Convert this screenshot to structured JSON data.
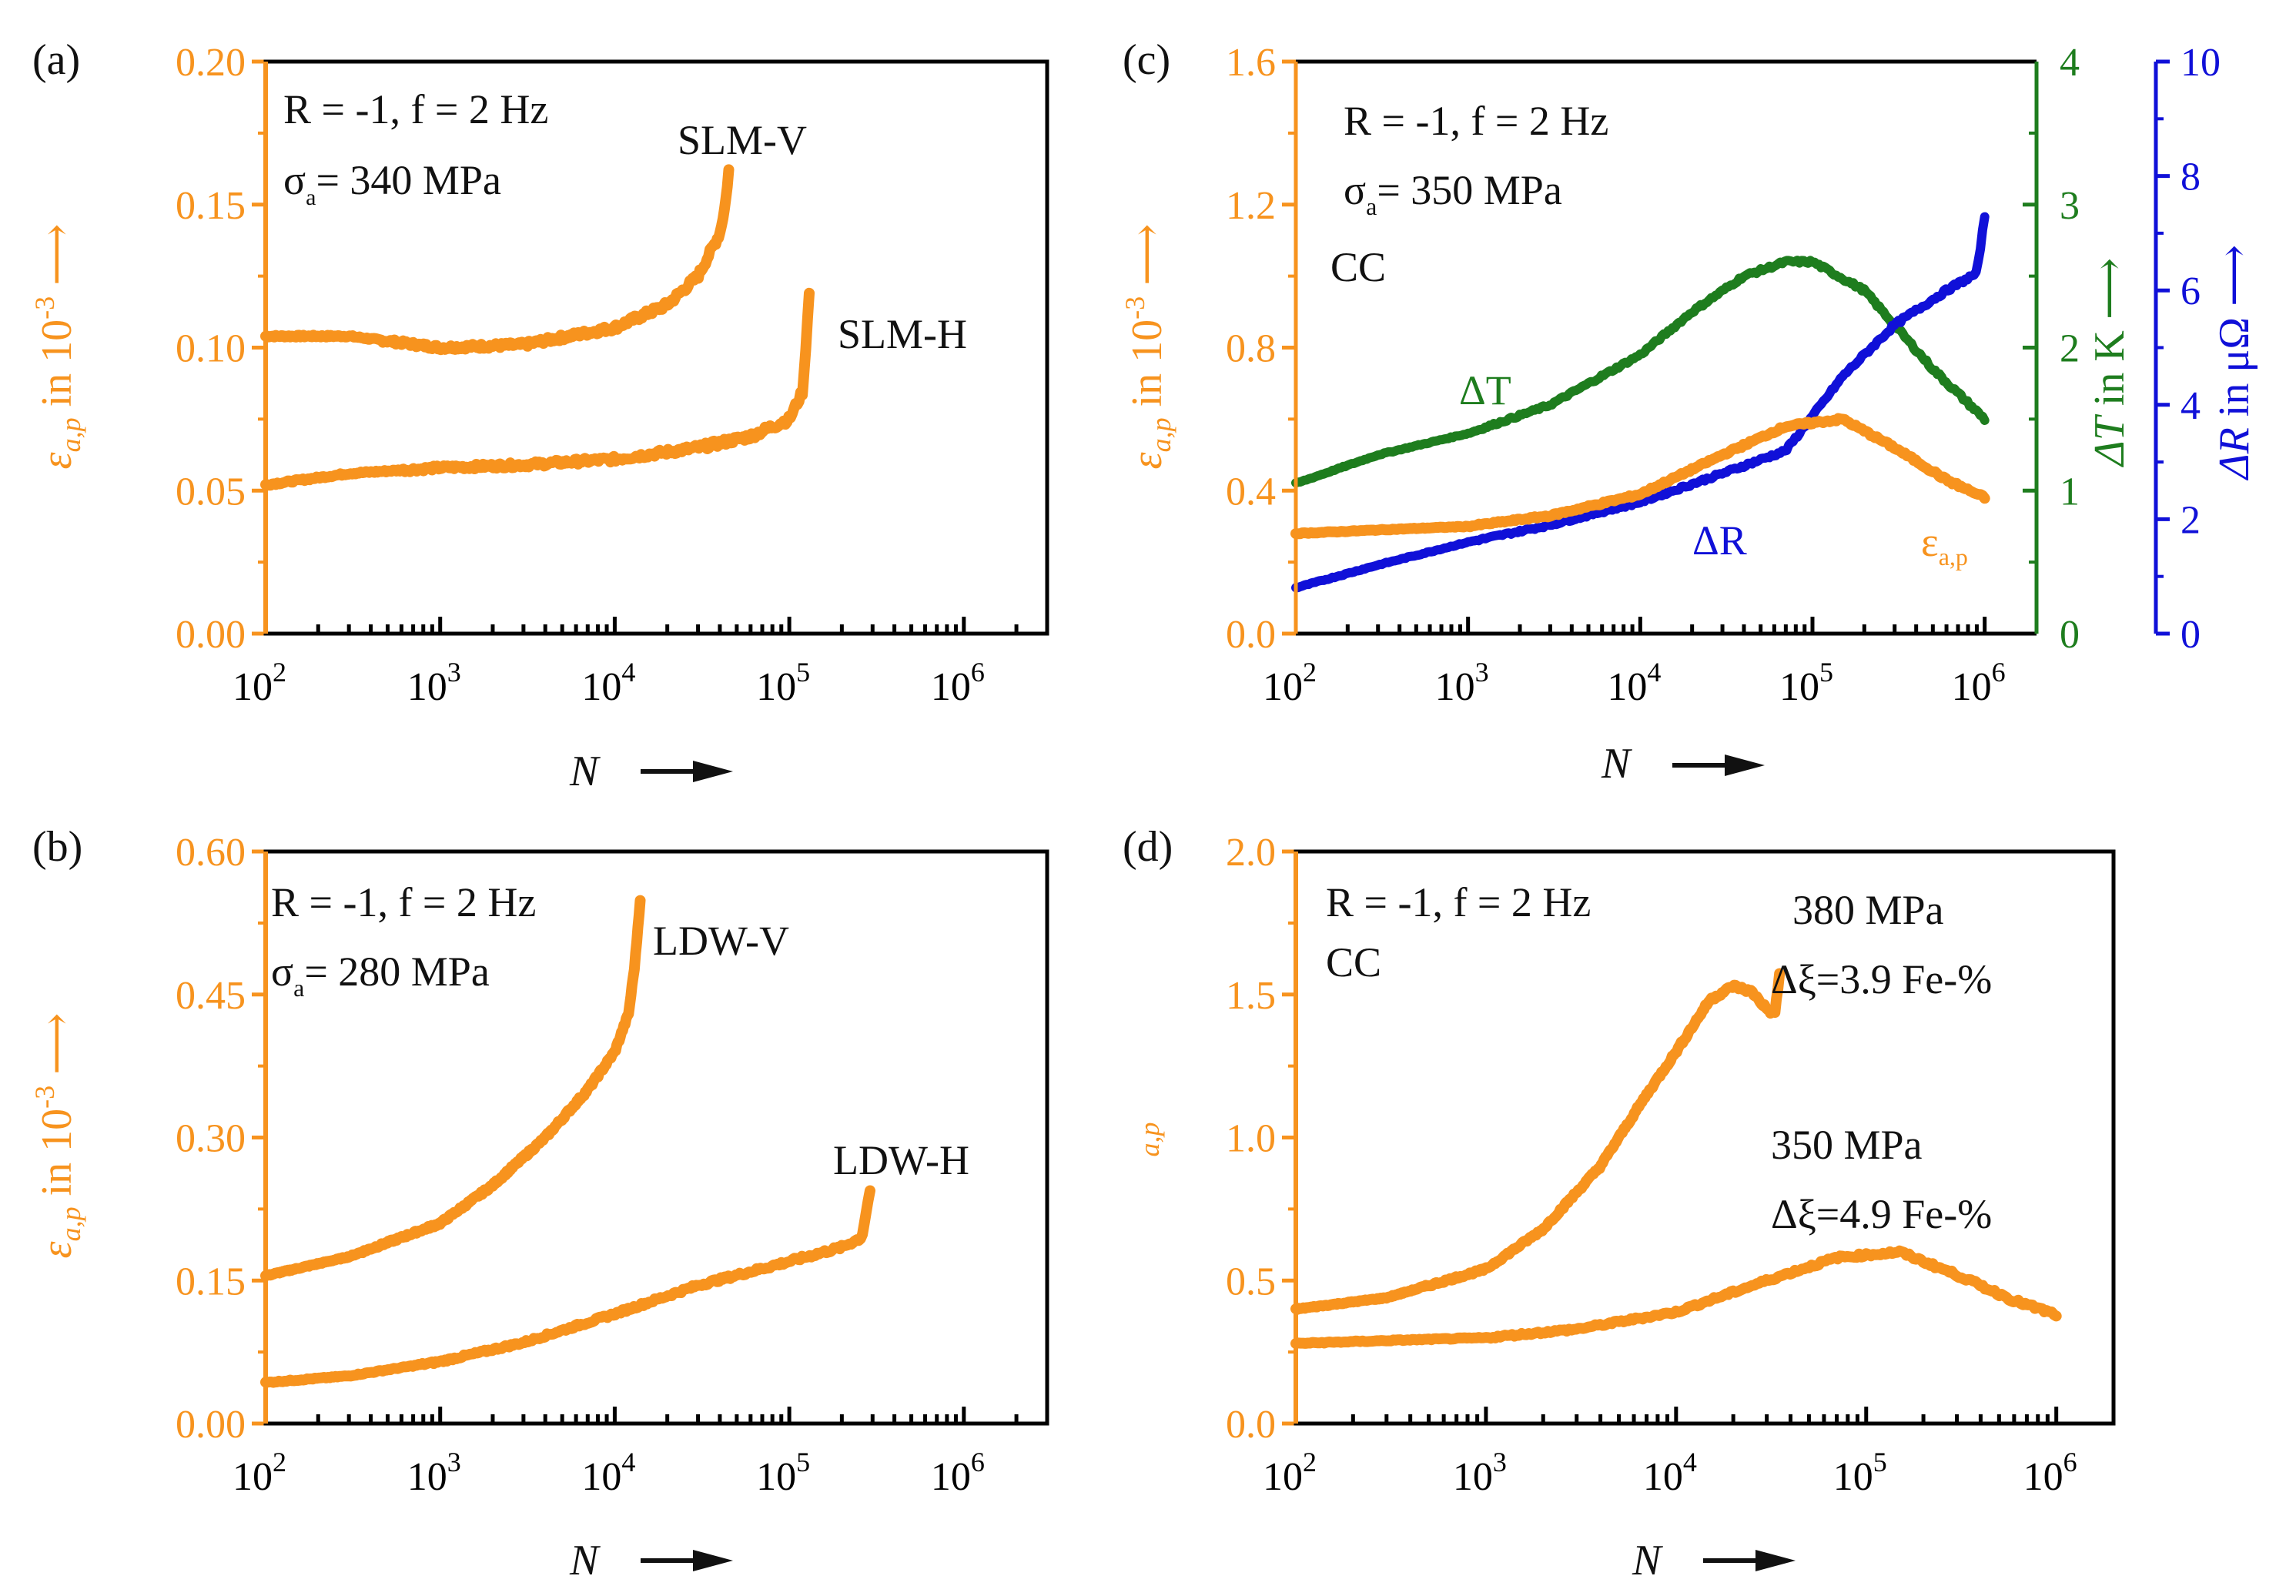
{
  "colors": {
    "orange": "#F7931E",
    "green": "#1E7D1E",
    "blue": "#1010D8",
    "frame": "#000000"
  },
  "x_axis": {
    "label": "N",
    "tick_labels": [
      {
        "base": "10",
        "exp": "2"
      },
      {
        "base": "10",
        "exp": "3"
      },
      {
        "base": "10",
        "exp": "4"
      },
      {
        "base": "10",
        "exp": "5"
      },
      {
        "base": "10",
        "exp": "6"
      }
    ]
  },
  "panels": [
    {
      "id": "a",
      "label": "(a)",
      "ylabel": {
        "eps": "ε",
        "sub": "a,p",
        "unit": " in 10",
        "exp": "-3"
      },
      "annotations": {
        "line1": "R = -1, f = 2 Hz",
        "sigma": "σ",
        "sigma_sub": "a",
        "sigma_val": "= 340 MPa"
      },
      "series_labels": [
        "SLM-V",
        "SLM-H"
      ]
    },
    {
      "id": "b",
      "label": "(b)",
      "ylabel": {
        "eps": "ε",
        "sub": "a,p",
        "unit": " in 10",
        "exp": "-3"
      },
      "annotations": {
        "line1": "R = -1, f = 2 Hz",
        "sigma": "σ",
        "sigma_sub": "a",
        "sigma_val": "= 280 MPa"
      },
      "series_labels": [
        "LDW-V",
        "LDW-H"
      ]
    },
    {
      "id": "c",
      "label": "(c)",
      "ylabel": {
        "eps": "ε",
        "sub": "a,p",
        "unit": " in 10",
        "exp": "-3"
      },
      "annotations": {
        "line1": "R = -1, f = 2 Hz",
        "sigma": "σ",
        "sigma_sub": "a",
        "sigma_val": "= 350 MPa",
        "line3": "CC"
      },
      "series_labels": [
        "ΔT",
        "ΔR",
        "ε",
        "a,p"
      ],
      "ylabel_T": {
        "sym": "ΔT",
        "unit": " in K"
      },
      "ylabel_R": {
        "sym": "ΔR",
        "unit": " in μΩ"
      }
    },
    {
      "id": "d",
      "label": "(d)",
      "ylabel": {
        "sub": "a,p"
      },
      "annotations": {
        "line1": "R = -1, f = 2 Hz",
        "line2": "CC"
      },
      "series_labels": [
        "380 MPa",
        "Δξ=3.9 Fe-%",
        "350 MPa",
        "Δξ=4.9 Fe-%"
      ]
    }
  ],
  "chart_data": [
    {
      "panel": "a",
      "type": "line",
      "xscale": "log",
      "xlim": [
        100,
        3000000
      ],
      "ylim": [
        0,
        0.2
      ],
      "yticks": [
        0.0,
        0.05,
        0.1,
        0.15,
        0.2
      ],
      "ytick_labels": [
        "0.00",
        "0.05",
        "0.10",
        "0.15",
        "0.20"
      ],
      "xlabel": "N",
      "ylabel": "ε a,p in 10^-3",
      "series": [
        {
          "name": "SLM-V",
          "x": [
            100,
            300,
            1000,
            3000,
            10000,
            20000,
            30000,
            40000,
            43000,
            45000
          ],
          "y": [
            0.104,
            0.104,
            0.1,
            0.101,
            0.107,
            0.115,
            0.125,
            0.14,
            0.15,
            0.162
          ]
        },
        {
          "name": "SLM-H",
          "x": [
            100,
            300,
            1000,
            3000,
            10000,
            30000,
            60000,
            100000,
            120000,
            130000
          ],
          "y": [
            0.052,
            0.056,
            0.058,
            0.059,
            0.061,
            0.065,
            0.069,
            0.075,
            0.085,
            0.12
          ]
        }
      ]
    },
    {
      "panel": "b",
      "type": "line",
      "xscale": "log",
      "xlim": [
        100,
        3000000
      ],
      "ylim": [
        0,
        0.6
      ],
      "yticks": [
        0.0,
        0.15,
        0.3,
        0.45,
        0.6
      ],
      "ytick_labels": [
        "0.00",
        "0.15",
        "0.30",
        "0.45",
        "0.60"
      ],
      "xlabel": "N",
      "ylabel": "ε a,p in 10^-3",
      "series": [
        {
          "name": "LDW-V",
          "x": [
            100,
            300,
            1000,
            2000,
            4000,
            7000,
            10000,
            12000,
            13000,
            14000
          ],
          "y": [
            0.155,
            0.175,
            0.21,
            0.25,
            0.3,
            0.35,
            0.39,
            0.43,
            0.48,
            0.55
          ]
        },
        {
          "name": "LDW-H",
          "x": [
            100,
            300,
            1000,
            3000,
            10000,
            30000,
            100000,
            200000,
            260000,
            290000
          ],
          "y": [
            0.043,
            0.05,
            0.065,
            0.085,
            0.115,
            0.145,
            0.17,
            0.185,
            0.195,
            0.245
          ]
        }
      ]
    },
    {
      "panel": "c",
      "type": "line",
      "xscale": "log",
      "xlim": [
        100,
        2000000
      ],
      "ylim": [
        0,
        1.6
      ],
      "yticks": [
        0.0,
        0.4,
        0.8,
        1.2,
        1.6
      ],
      "ytick_labels": [
        "0.0",
        "0.4",
        "0.8",
        "1.2",
        "1.6"
      ],
      "y2lim": [
        0,
        4
      ],
      "y2ticks": [
        0,
        1,
        2,
        3,
        4
      ],
      "y2label": "ΔT in K",
      "y3lim": [
        0,
        10
      ],
      "y3ticks": [
        0,
        2,
        4,
        6,
        8,
        10
      ],
      "y3label": "ΔR in μΩ",
      "xlabel": "N",
      "ylabel": "ε a,p in 10^-3",
      "series": [
        {
          "name": "ΔT",
          "axis": "y2",
          "x": [
            100,
            300,
            1000,
            3000,
            10000,
            20000,
            40000,
            70000,
            100000,
            200000,
            500000,
            1000000
          ],
          "y": [
            1.05,
            1.25,
            1.4,
            1.6,
            1.95,
            2.25,
            2.5,
            2.6,
            2.6,
            2.4,
            1.85,
            1.5
          ]
        },
        {
          "name": "ΔR",
          "axis": "y3",
          "x": [
            100,
            300,
            1000,
            3000,
            10000,
            30000,
            70000,
            100000,
            150000,
            300000,
            600000,
            900000,
            1000000
          ],
          "y": [
            0.8,
            1.2,
            1.6,
            1.9,
            2.3,
            2.8,
            3.2,
            3.8,
            4.5,
            5.4,
            6.0,
            6.3,
            7.3
          ]
        },
        {
          "name": "ε a,p",
          "axis": "y",
          "x": [
            100,
            300,
            1000,
            3000,
            10000,
            30000,
            70000,
            150000,
            300000,
            600000,
            1000000
          ],
          "y": [
            0.28,
            0.29,
            0.3,
            0.33,
            0.39,
            0.5,
            0.58,
            0.6,
            0.52,
            0.43,
            0.38
          ]
        }
      ]
    },
    {
      "panel": "d",
      "type": "line",
      "xscale": "log",
      "xlim": [
        100,
        2000000
      ],
      "ylim": [
        0,
        2.0
      ],
      "yticks": [
        0.0,
        0.5,
        1.0,
        1.5,
        2.0
      ],
      "ytick_labels": [
        "0.0",
        "0.5",
        "1.0",
        "1.5",
        "2.0"
      ],
      "xlabel": "N",
      "ylabel": "a,p",
      "series": [
        {
          "name": "380 MPa",
          "x": [
            100,
            300,
            1000,
            2000,
            4000,
            7000,
            10000,
            15000,
            20000,
            25000,
            30000,
            33000,
            35000
          ],
          "y": [
            0.4,
            0.44,
            0.54,
            0.68,
            0.9,
            1.15,
            1.3,
            1.48,
            1.53,
            1.51,
            1.45,
            1.43,
            1.57
          ]
        },
        {
          "name": "350 MPa",
          "x": [
            100,
            300,
            1000,
            3000,
            10000,
            30000,
            70000,
            150000,
            300000,
            600000,
            1000000
          ],
          "y": [
            0.28,
            0.29,
            0.3,
            0.33,
            0.39,
            0.5,
            0.58,
            0.6,
            0.52,
            0.43,
            0.38
          ]
        }
      ]
    }
  ]
}
